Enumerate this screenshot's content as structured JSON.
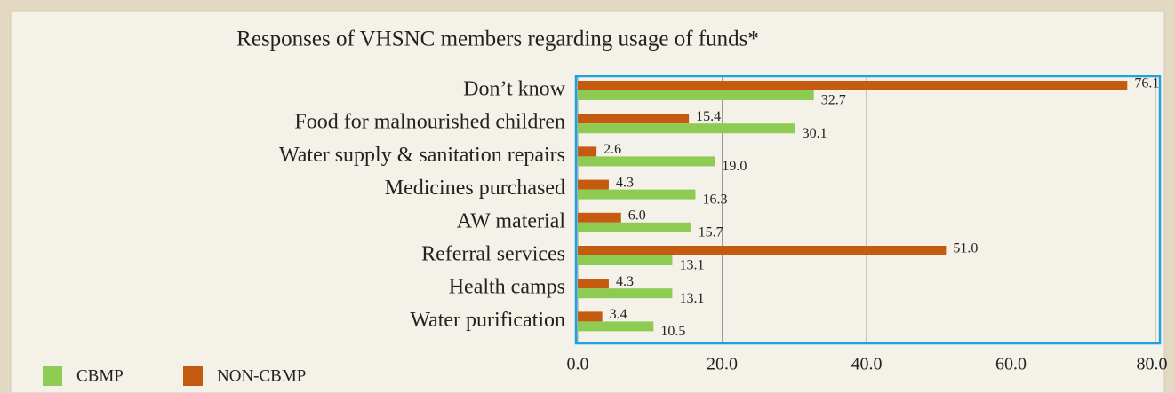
{
  "chart_data": {
    "type": "hbar",
    "title": "Responses of VHSNC members regarding usage of funds*",
    "categories": [
      "Don’t know",
      "Food for malnourished children",
      "Water supply & sanitation repairs",
      "Medicines purchased",
      "AW material",
      "Referral services",
      "Health camps",
      "Water purification"
    ],
    "series": [
      {
        "name": "CBMP",
        "color": "#8dcb52",
        "values": [
          32.7,
          30.1,
          19.0,
          16.3,
          15.7,
          13.1,
          13.1,
          10.5
        ],
        "value_labels": [
          "32.7",
          "30.1",
          "19.0",
          "16.3",
          "15.7",
          "13.1",
          "13.1",
          "10.5"
        ]
      },
      {
        "name": "NON-CBMP",
        "color": "#c55a11",
        "values": [
          76.1,
          15.4,
          2.6,
          4.3,
          6.0,
          51.0,
          4.3,
          3.4
        ],
        "value_labels": [
          "76.1",
          "15.4",
          "2.6",
          "4.3",
          "6.0",
          "51.0",
          "4.3",
          "3.4"
        ]
      }
    ],
    "xlim": [
      0,
      80
    ],
    "xticks": [
      {
        "value": 0,
        "label": "0.0"
      },
      {
        "value": 20,
        "label": "20.0"
      },
      {
        "value": 40,
        "label": "40.0"
      },
      {
        "value": 60,
        "label": "60.0"
      },
      {
        "value": 80,
        "label": "80.0"
      }
    ],
    "grid": true
  }
}
